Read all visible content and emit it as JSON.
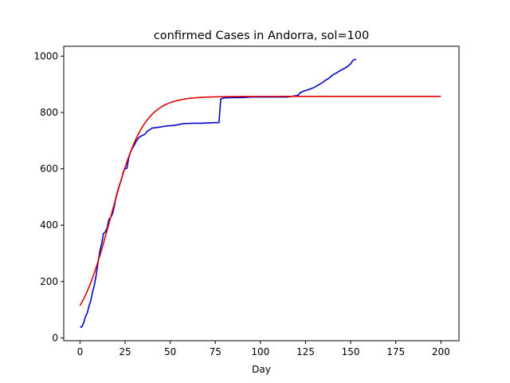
{
  "chart_data": {
    "type": "line",
    "title": "confirmed Cases in Andorra, sol=100",
    "xlabel": "Day",
    "ylabel": "",
    "xlim": [
      -9,
      210
    ],
    "ylim": [
      -10,
      1035
    ],
    "xticks": [
      0,
      25,
      50,
      75,
      100,
      125,
      150,
      175,
      200
    ],
    "yticks": [
      0,
      200,
      400,
      600,
      800,
      1000
    ],
    "grid": false,
    "series": [
      {
        "color": "#0000cc",
        "x": [
          0,
          1,
          2,
          3,
          4,
          5,
          6,
          7,
          8,
          9,
          10,
          11,
          12,
          13,
          14,
          15,
          16,
          17,
          18,
          19,
          20,
          21,
          22,
          23,
          24,
          25,
          26,
          27,
          28,
          29,
          30,
          31,
          32,
          33,
          34,
          35,
          36,
          37,
          38,
          39,
          40,
          42,
          44,
          46,
          48,
          50,
          52,
          54,
          56,
          58,
          60,
          62,
          64,
          66,
          68,
          70,
          72,
          74,
          76,
          77,
          78,
          80,
          85,
          90,
          95,
          100,
          105,
          110,
          115,
          118,
          120,
          121,
          122,
          124,
          126,
          128,
          130,
          132,
          134,
          136,
          138,
          140,
          142,
          144,
          146,
          148,
          150,
          151,
          152,
          153
        ],
        "y": [
          39,
          39,
          53,
          75,
          88,
          113,
          133,
          164,
          188,
          224,
          267,
          308,
          334,
          370,
          376,
          390,
          420,
          428,
          440,
          466,
          501,
          525,
          545,
          564,
          589,
          601,
          602,
          639,
          659,
          673,
          683,
          696,
          706,
          713,
          717,
          720,
          723,
          731,
          737,
          740,
          745,
          746,
          748,
          750,
          752,
          753,
          754,
          756,
          759,
          761,
          761,
          762,
          762,
          762,
          762,
          763,
          763,
          764,
          764,
          764,
          848,
          852,
          853,
          853,
          855,
          855,
          855,
          855,
          855,
          858,
          860,
          862,
          870,
          876,
          880,
          884,
          890,
          897,
          905,
          914,
          922,
          933,
          940,
          948,
          955,
          962,
          973,
          983,
          988,
          988
        ]
      },
      {
        "color": "#dd0000",
        "fit": {
          "L": 857,
          "k": 0.11,
          "x0": 17,
          "x_start": 0,
          "x_end": 200
        }
      }
    ]
  }
}
